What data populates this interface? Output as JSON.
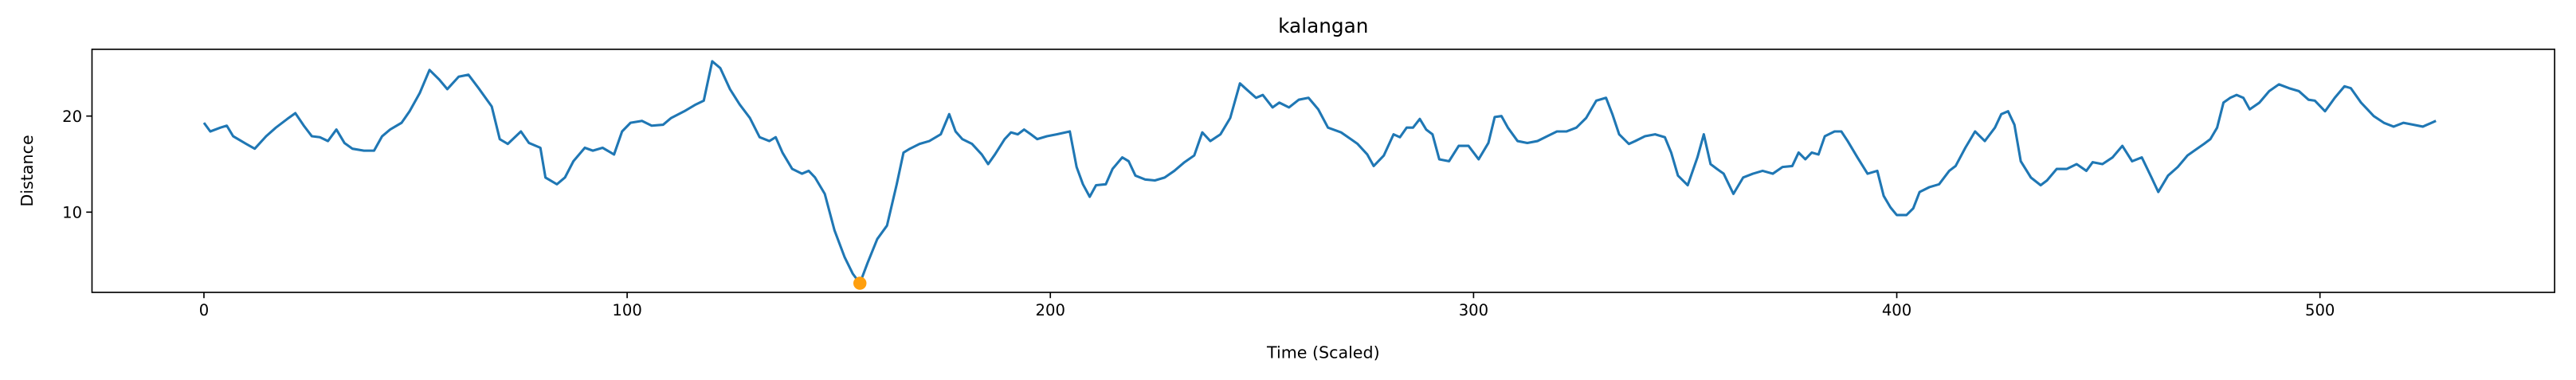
{
  "chart_data": {
    "type": "line",
    "title": "kalangan",
    "x_label": "Time (Scaled)",
    "y_label": "Distance",
    "xlim": [
      -26.45,
      555.45
    ],
    "ylim": [
      1.65,
      26.95
    ],
    "xticks": [
      0,
      100,
      200,
      300,
      400,
      500
    ],
    "yticks": [
      10,
      20
    ],
    "series": [
      {
        "color": "#1f77b4",
        "x": [
          0,
          1.5,
          3.9,
          5.4,
          6.9,
          10,
          12,
          14.7,
          17,
          19.7,
          21.6,
          23.6,
          25.5,
          27.4,
          29.3,
          31.3,
          33.2,
          35.1,
          37.8,
          40.2,
          42.1,
          44,
          46.7,
          48.6,
          51,
          53.3,
          55.6,
          57.5,
          60.2,
          62.5,
          64.9,
          68,
          69.9,
          71.8,
          74.9,
          76.8,
          79.5,
          80.7,
          83.4,
          85.3,
          87.3,
          90,
          91.9,
          94.2,
          96.9,
          98.8,
          100.8,
          103.5,
          105.8,
          108.5,
          110.4,
          113.5,
          116.2,
          118.1,
          120.1,
          122,
          124.3,
          126.6,
          129,
          131.3,
          133.6,
          135.1,
          136.7,
          139,
          141.3,
          142.9,
          144.4,
          146.7,
          149,
          151.4,
          153.3,
          155,
          156.8,
          159.1,
          161.4,
          163.7,
          165.3,
          166.8,
          169.1,
          171.4,
          174.1,
          176.1,
          177.6,
          179.2,
          181.5,
          183.8,
          185.3,
          186.9,
          189.2,
          190.7,
          192.3,
          193.8,
          195.4,
          196.9,
          199.2,
          201.5,
          204.6,
          206.2,
          207.7,
          209.3,
          210.8,
          213.1,
          214.7,
          217,
          218.5,
          220.1,
          222.4,
          224.7,
          227,
          229.3,
          231.7,
          234,
          235.9,
          237.8,
          240.2,
          242.5,
          244.8,
          246.3,
          248.6,
          250.2,
          252.5,
          254.1,
          256.4,
          258.7,
          261,
          263.3,
          265.6,
          268.7,
          271,
          272.6,
          274.9,
          276.4,
          278.8,
          281.1,
          282.6,
          284.2,
          285.7,
          287.3,
          288.8,
          290.3,
          291.9,
          294.2,
          296.5,
          298.8,
          301.2,
          303.5,
          305,
          306.6,
          308.1,
          310.4,
          312.7,
          315.1,
          317.4,
          319.7,
          322,
          324.3,
          326.6,
          329,
          331.3,
          332.8,
          334.4,
          336.7,
          338.2,
          340.5,
          342.9,
          345.2,
          346.7,
          348.3,
          350.6,
          352.9,
          354.4,
          356,
          357.5,
          359.1,
          361.4,
          363.7,
          366,
          368.3,
          370.7,
          373,
          375.3,
          376.8,
          378.4,
          379.9,
          381.5,
          383,
          385.3,
          386.9,
          388.4,
          390.7,
          393.1,
          395.4,
          396.9,
          398.5,
          400,
          402.3,
          403.9,
          405.4,
          407.7,
          410,
          412.4,
          413.9,
          416.2,
          418.5,
          420.8,
          423.2,
          424.7,
          426.3,
          427.8,
          429.3,
          431.7,
          434,
          435.5,
          437.8,
          440.2,
          442.5,
          444.8,
          446.3,
          448.6,
          451,
          453.3,
          455.6,
          457.9,
          460.2,
          461.8,
          464.1,
          466.4,
          468.7,
          470.3,
          472.6,
          474.1,
          475.7,
          477.2,
          478.8,
          480.3,
          481.9,
          483.4,
          485.7,
          488,
          490.3,
          492.7,
          495,
          497.3,
          498.8,
          501.2,
          503.5,
          505.8,
          507.3,
          509.7,
          511.2,
          512.7,
          515.1,
          517.4,
          519.7,
          522,
          524.3,
          527.4
        ],
        "values": [
          19.3,
          18.4,
          18.8,
          19,
          17.9,
          17.1,
          16.6,
          17.9,
          18.8,
          19.7,
          20.3,
          19,
          17.9,
          17.8,
          17.4,
          18.6,
          17.2,
          16.6,
          16.4,
          16.4,
          17.9,
          18.6,
          19.3,
          20.5,
          22.4,
          24.8,
          23.8,
          22.8,
          24.1,
          24.3,
          22.9,
          21,
          17.6,
          17.1,
          18.4,
          17.2,
          16.7,
          13.6,
          12.9,
          13.6,
          15.3,
          16.7,
          16.4,
          16.7,
          16,
          18.4,
          19.3,
          19.5,
          19,
          19.1,
          19.8,
          20.5,
          21.2,
          21.6,
          25.7,
          25,
          22.8,
          21.2,
          19.8,
          17.8,
          17.4,
          17.8,
          16.2,
          14.5,
          14,
          14.3,
          13.6,
          11.9,
          8.1,
          5.3,
          3.6,
          2.6,
          4.7,
          7.2,
          8.6,
          12.9,
          16.2,
          16.6,
          17.1,
          17.4,
          18.1,
          20.2,
          18.4,
          17.6,
          17.1,
          16,
          15,
          16,
          17.6,
          18.3,
          18.1,
          18.6,
          18.1,
          17.6,
          17.9,
          18.1,
          18.4,
          14.7,
          12.9,
          11.6,
          12.8,
          12.9,
          14.5,
          15.7,
          15.3,
          13.8,
          13.4,
          13.3,
          13.6,
          14.3,
          15.2,
          15.9,
          18.3,
          17.4,
          18.1,
          19.8,
          23.4,
          22.8,
          21.9,
          22.2,
          20.9,
          21.4,
          20.9,
          21.7,
          21.9,
          20.7,
          18.8,
          18.3,
          17.6,
          17.1,
          16,
          14.8,
          15.9,
          18.1,
          17.8,
          18.8,
          18.8,
          19.7,
          18.6,
          18.1,
          15.5,
          15.3,
          16.9,
          16.9,
          15.5,
          17.2,
          19.9,
          20,
          18.8,
          17.4,
          17.2,
          17.4,
          17.9,
          18.4,
          18.4,
          18.8,
          19.8,
          21.6,
          21.9,
          20.2,
          18.1,
          17.1,
          17.4,
          17.9,
          18.1,
          17.8,
          16.2,
          13.8,
          12.8,
          15.7,
          18.1,
          15,
          14.5,
          14,
          11.9,
          13.6,
          14,
          14.3,
          14,
          14.7,
          14.8,
          16.2,
          15.5,
          16.2,
          16,
          17.9,
          18.4,
          18.4,
          17.4,
          15.7,
          14,
          14.3,
          11.7,
          10.5,
          9.7,
          9.7,
          10.4,
          12.1,
          12.6,
          12.9,
          14.3,
          14.8,
          16.7,
          18.4,
          17.4,
          18.8,
          20.2,
          20.5,
          19.1,
          15.3,
          13.6,
          12.8,
          13.3,
          14.5,
          14.5,
          15,
          14.3,
          15.2,
          15,
          15.7,
          16.9,
          15.3,
          15.7,
          13.6,
          12.1,
          13.8,
          14.7,
          15.9,
          16.4,
          17.1,
          17.6,
          18.8,
          21.4,
          21.9,
          22.2,
          21.9,
          20.7,
          21.4,
          22.6,
          23.3,
          22.9,
          22.6,
          21.7,
          21.6,
          20.5,
          21.9,
          23.1,
          22.9,
          21.4,
          20.7,
          20,
          19.3,
          18.9,
          19.3,
          19.1,
          18.9,
          19.5
        ]
      }
    ],
    "highlight": {
      "x": 155,
      "y": 2.6,
      "color": "#ff9f0e"
    }
  }
}
